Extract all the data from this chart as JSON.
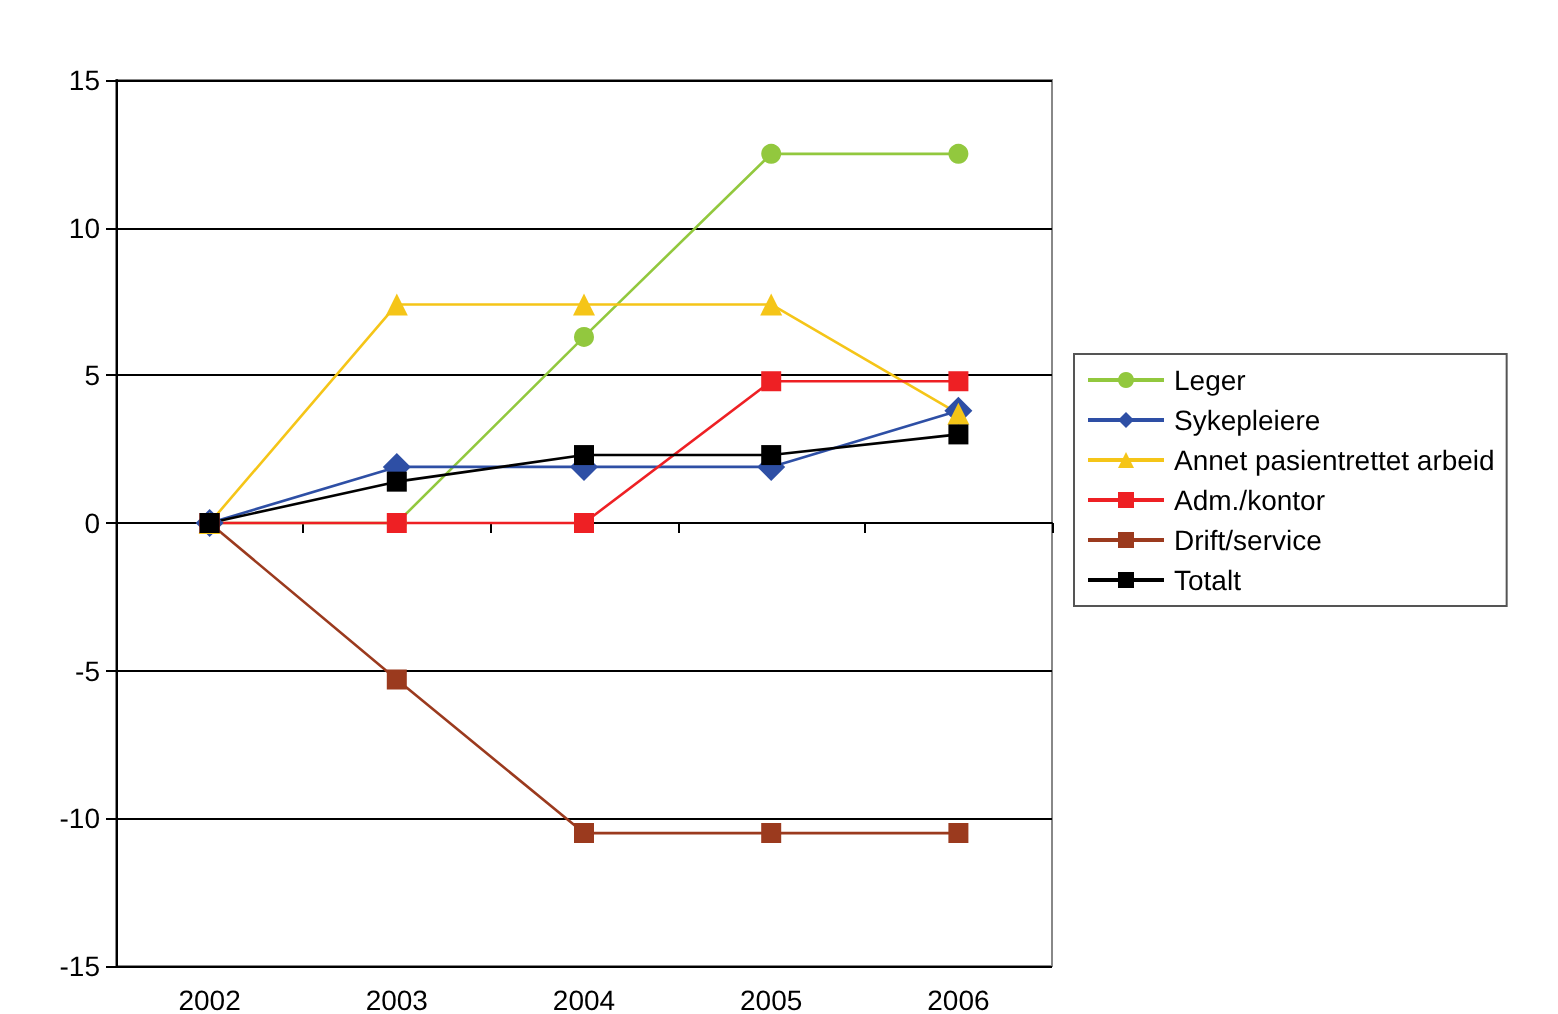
{
  "chart_data": {
    "type": "line",
    "categories": [
      "2002",
      "2003",
      "2004",
      "2005",
      "2006"
    ],
    "ylim": [
      -15,
      15
    ],
    "yticks": [
      -15,
      -10,
      -5,
      0,
      5,
      10,
      15
    ],
    "grid": "y",
    "legend": "right",
    "series": [
      {
        "name": "Leger",
        "color": "#92c83e",
        "marker": "circle",
        "values": [
          0,
          0,
          6.3,
          12.5,
          12.5
        ]
      },
      {
        "name": "Sykepleiere",
        "color": "#2e4fa5",
        "marker": "diamond",
        "values": [
          0,
          1.9,
          1.9,
          1.9,
          3.8
        ]
      },
      {
        "name": "Annet pasientrettet arbeid",
        "color": "#f5c518",
        "marker": "triangle",
        "values": [
          0,
          7.4,
          7.4,
          7.4,
          3.7
        ]
      },
      {
        "name": "Adm./kontor",
        "color": "#ee2024",
        "marker": "square",
        "values": [
          0,
          0,
          0,
          4.8,
          4.8
        ]
      },
      {
        "name": "Drift/service",
        "color": "#9b3a1e",
        "marker": "cross",
        "values": [
          0,
          -5.3,
          -10.5,
          -10.5,
          -10.5
        ]
      },
      {
        "name": "Totalt",
        "color": "#000000",
        "marker": "square",
        "values": [
          0,
          1.4,
          2.3,
          2.3,
          3.0
        ]
      }
    ]
  }
}
